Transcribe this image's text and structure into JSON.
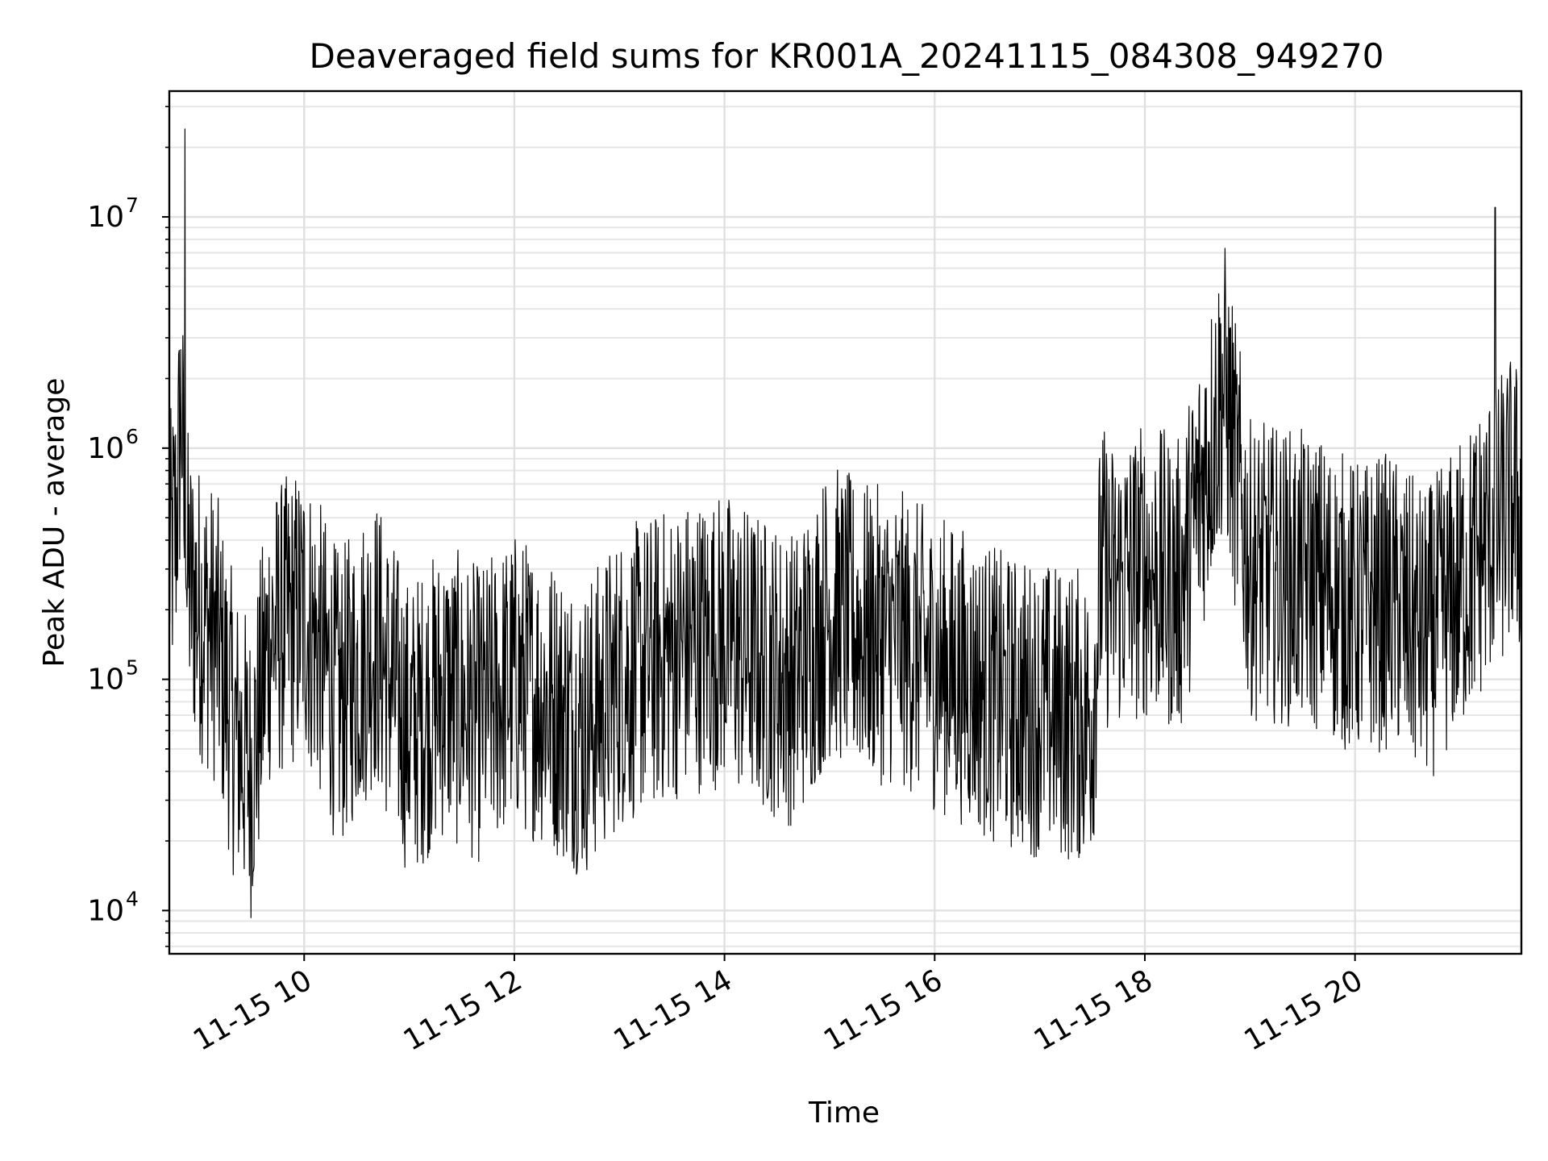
{
  "chart_data": {
    "type": "line",
    "title": "Deaveraged field sums for KR001A_20241115_084308_949270",
    "xlabel": "Time",
    "ylabel": "Peak ADU - average",
    "xlim": [
      "2024-11-15 08:43",
      "2024-11-15 21:35"
    ],
    "ylim": [
      6500,
      35000000
    ],
    "yscale": "log",
    "grid": true,
    "x_ticks": [
      "11-15 10",
      "11-15 12",
      "11-15 14",
      "11-15 16",
      "11-15 18",
      "11-15 20"
    ],
    "y_ticks": [
      {
        "base": "10",
        "exp": "4"
      },
      {
        "base": "10",
        "exp": "5"
      },
      {
        "base": "10",
        "exp": "6"
      },
      {
        "base": "10",
        "exp": "7"
      }
    ],
    "series": [
      {
        "color": "#000000",
        "x": [
          "2024-11-15 08:43",
          "2024-11-15 08:47",
          "2024-11-15 08:50",
          "2024-11-15 08:52",
          "2024-11-15 08:53",
          "2024-11-15 08:55",
          "2024-11-15 09:00",
          "2024-11-15 09:10",
          "2024-11-15 09:20",
          "2024-11-15 09:30",
          "2024-11-15 09:40",
          "2024-11-15 10:00",
          "2024-11-15 10:20",
          "2024-11-15 10:40",
          "2024-11-15 11:00",
          "2024-11-15 11:20",
          "2024-11-15 11:40",
          "2024-11-15 12:00",
          "2024-11-15 12:20",
          "2024-11-15 12:40",
          "2024-11-15 13:00",
          "2024-11-15 13:20",
          "2024-11-15 13:40",
          "2024-11-15 14:00",
          "2024-11-15 14:20",
          "2024-11-15 14:40",
          "2024-11-15 15:00",
          "2024-11-15 15:20",
          "2024-11-15 15:40",
          "2024-11-15 16:00",
          "2024-11-15 16:20",
          "2024-11-15 16:40",
          "2024-11-15 17:00",
          "2024-11-15 17:20",
          "2024-11-15 17:30",
          "2024-11-15 17:35",
          "2024-11-15 17:40",
          "2024-11-15 18:00",
          "2024-11-15 18:20",
          "2024-11-15 18:45",
          "2024-11-15 19:00",
          "2024-11-15 19:20",
          "2024-11-15 19:40",
          "2024-11-15 20:00",
          "2024-11-15 20:20",
          "2024-11-15 20:40",
          "2024-11-15 21:00",
          "2024-11-15 21:15",
          "2024-11-15 21:20",
          "2024-11-15 21:24",
          "2024-11-15 21:30",
          "2024-11-15 21:35"
        ],
        "y": [
          300000,
          500000,
          1600000,
          24000000,
          300000,
          250000,
          200000,
          150000,
          60000,
          40000,
          150000,
          200000,
          80000,
          150000,
          60000,
          90000,
          70000,
          100000,
          80000,
          60000,
          100000,
          120000,
          140000,
          150000,
          120000,
          100000,
          200000,
          160000,
          150000,
          120000,
          100000,
          80000,
          75000,
          70000,
          70000,
          300000,
          250000,
          300000,
          250000,
          1900000,
          300000,
          280000,
          260000,
          200000,
          220000,
          150000,
          250000,
          400000,
          11000000,
          500000,
          600000,
          500000
        ]
      }
    ]
  }
}
